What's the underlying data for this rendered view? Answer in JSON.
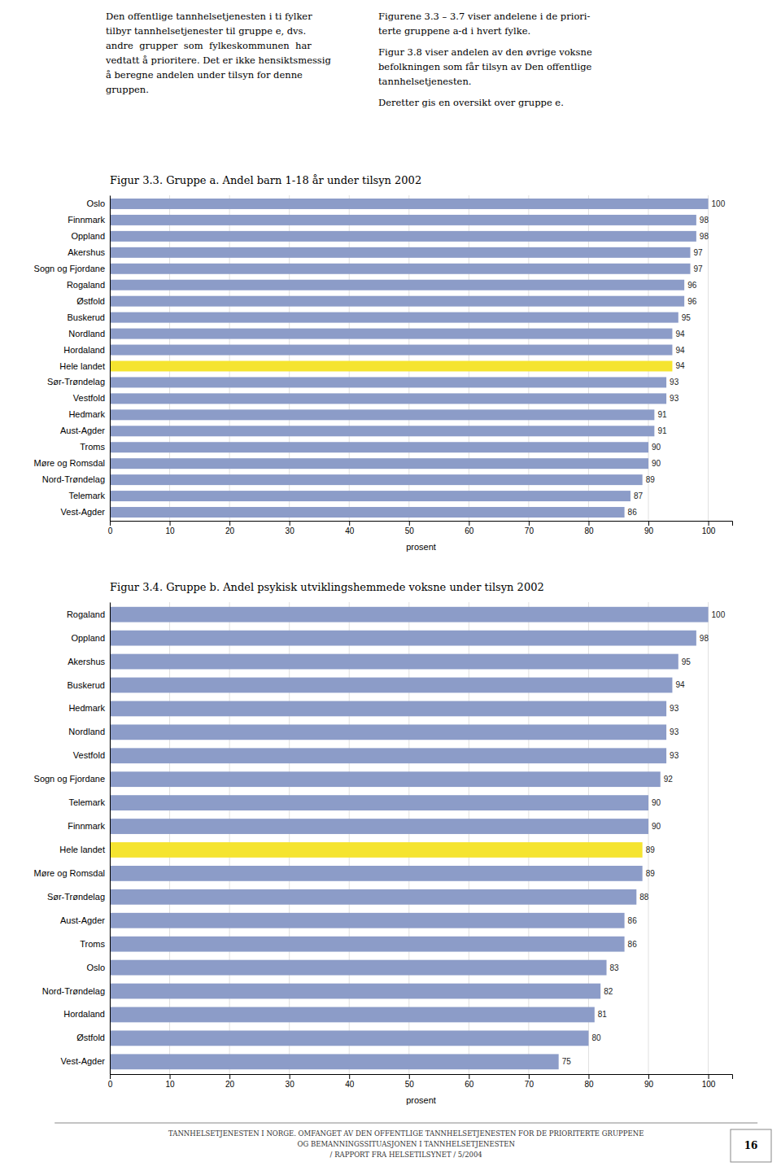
{
  "text": {
    "left": [
      "Den offentlige tannhelsetjenesten i ti fylker",
      "tilbyr tannhelsetjenester til gruppe e, dvs.",
      "andre  grupper  som  fylkeskommunen  har",
      "vedtatt å prioritere. Det er ikke hensiktsmessig",
      "å beregne andelen under tilsyn for denne",
      "gruppen."
    ],
    "right": [
      [
        "Figurene 3.3 – 3.7 viser andelene i de priori-",
        "terte gruppene a-d i hvert fylke."
      ],
      [
        "Figur 3.8 viser andelen av den øvrige voksne",
        "befolkningen som får tilsyn av Den offentlige",
        "tannhelsetjenesten."
      ],
      [
        "Deretter gis en oversikt over gruppe e."
      ]
    ]
  },
  "chart_data": [
    {
      "type": "bar",
      "orientation": "horizontal",
      "title": "Figur 3.3. Gruppe a. Andel barn 1-18 år under tilsyn 2002",
      "categories": [
        "Oslo",
        "Finnmark",
        "Oppland",
        "Akershus",
        "Sogn og Fjordane",
        "Rogaland",
        "Østfold",
        "Buskerud",
        "Nordland",
        "Hordaland",
        "Hele landet",
        "Sør-Trøndelag",
        "Vestfold",
        "Hedmark",
        "Aust-Agder",
        "Troms",
        "Møre og Romsdal",
        "Nord-Trøndelag",
        "Telemark",
        "Vest-Agder"
      ],
      "values": [
        100,
        98,
        98,
        97,
        97,
        96,
        96,
        95,
        94,
        94,
        94,
        93,
        93,
        91,
        91,
        90,
        90,
        89,
        87,
        86
      ],
      "colors": [
        "#8c9cc8",
        "#8c9cc8",
        "#8c9cc8",
        "#8c9cc8",
        "#8c9cc8",
        "#8c9cc8",
        "#8c9cc8",
        "#8c9cc8",
        "#8c9cc8",
        "#8c9cc8",
        "#f5e430",
        "#8c9cc8",
        "#8c9cc8",
        "#8c9cc8",
        "#8c9cc8",
        "#8c9cc8",
        "#8c9cc8",
        "#8c9cc8",
        "#8c9cc8",
        "#8c9cc8"
      ],
      "xlabel": "prosent",
      "xlim": [
        0,
        104
      ],
      "xticks": [
        0,
        10,
        20,
        30,
        40,
        50,
        60,
        70,
        80,
        90,
        100
      ],
      "grid": true,
      "data_labels": true
    },
    {
      "type": "bar",
      "orientation": "horizontal",
      "title": "Figur 3.4. Gruppe b. Andel psykisk utviklingshemmede voksne under tilsyn 2002",
      "categories": [
        "Rogaland",
        "Oppland",
        "Akershus",
        "Buskerud",
        "Hedmark",
        "Nordland",
        "Vestfold",
        "Sogn og Fjordane",
        "Telemark",
        "Finnmark",
        "Hele landet",
        "Møre og Romsdal",
        "Sør-Trøndelag",
        "Aust-Agder",
        "Troms",
        "Oslo",
        "Nord-Trøndelag",
        "Hordaland",
        "Østfold",
        "Vest-Agder"
      ],
      "values": [
        100,
        98,
        95,
        94,
        93,
        93,
        93,
        92,
        90,
        90,
        89,
        89,
        88,
        86,
        86,
        83,
        82,
        81,
        80,
        75
      ],
      "colors": [
        "#8c9cc8",
        "#8c9cc8",
        "#8c9cc8",
        "#8c9cc8",
        "#8c9cc8",
        "#8c9cc8",
        "#8c9cc8",
        "#8c9cc8",
        "#8c9cc8",
        "#8c9cc8",
        "#f5e430",
        "#8c9cc8",
        "#8c9cc8",
        "#8c9cc8",
        "#8c9cc8",
        "#8c9cc8",
        "#8c9cc8",
        "#8c9cc8",
        "#8c9cc8",
        "#8c9cc8"
      ],
      "xlabel": "prosent",
      "xlim": [
        0,
        104
      ],
      "xticks": [
        0,
        10,
        20,
        30,
        40,
        50,
        60,
        70,
        80,
        90,
        100
      ],
      "grid": true,
      "data_labels": true
    }
  ],
  "footer": [
    "TANNHELSETJENESTEN I NORGE. OMFANGET AV DEN OFFENTLIGE TANNHELSETJENESTEN FOR DE PRIORITERTE GRUPPENE",
    "OG BEMANNINGSSITUASJONEN I TANNHELSETJENESTEN",
    "/ RAPPORT FRA HELSETILSYNET / 5/2004"
  ],
  "page_number": "16"
}
